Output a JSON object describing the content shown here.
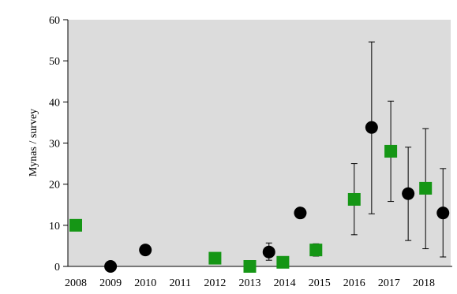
{
  "chart_data": {
    "type": "scatter",
    "title": "",
    "xlabel": "",
    "ylabel": "Mynas / survey",
    "ylim": [
      0,
      60
    ],
    "xlim": [
      2008,
      2018.6
    ],
    "x_ticks": [
      "2008",
      "2009",
      "2010",
      "2011",
      "2012",
      "2013",
      "2014",
      "2015",
      "2016",
      "2017",
      "2018"
    ],
    "y_ticks": [
      "0",
      "10",
      "20",
      "30",
      "40",
      "50",
      "60"
    ],
    "grid": false,
    "legend": "none",
    "plot_background": "#dcdcdc",
    "series": [
      {
        "marker": "square",
        "color": "#159615",
        "points": [
          {
            "x": 2008.0,
            "y": 10
          },
          {
            "x": 2012.0,
            "y": 2
          },
          {
            "x": 2013.0,
            "y": 0
          },
          {
            "x": 2013.95,
            "y": 1
          },
          {
            "x": 2014.9,
            "y": 4,
            "err_low": 2.5,
            "err_high": 5.5
          },
          {
            "x": 2016.0,
            "y": 16.3,
            "err_low": 7.7,
            "err_high": 25
          },
          {
            "x": 2017.05,
            "y": 28,
            "err_low": 15.8,
            "err_high": 40.2
          },
          {
            "x": 2018.05,
            "y": 19,
            "err_low": 4.3,
            "err_high": 33.5
          }
        ]
      },
      {
        "marker": "circle",
        "color": "#000000",
        "points": [
          {
            "x": 2009.0,
            "y": 0
          },
          {
            "x": 2010.0,
            "y": 4
          },
          {
            "x": 2013.55,
            "y": 3.5,
            "err_low": 1.5,
            "err_high": 5.7
          },
          {
            "x": 2014.45,
            "y": 13
          },
          {
            "x": 2016.5,
            "y": 33.8,
            "err_low": 12.8,
            "err_high": 54.6
          },
          {
            "x": 2017.55,
            "y": 17.7,
            "err_low": 6.3,
            "err_high": 29
          },
          {
            "x": 2018.55,
            "y": 13,
            "err_low": 2.3,
            "err_high": 23.8
          }
        ]
      }
    ]
  }
}
